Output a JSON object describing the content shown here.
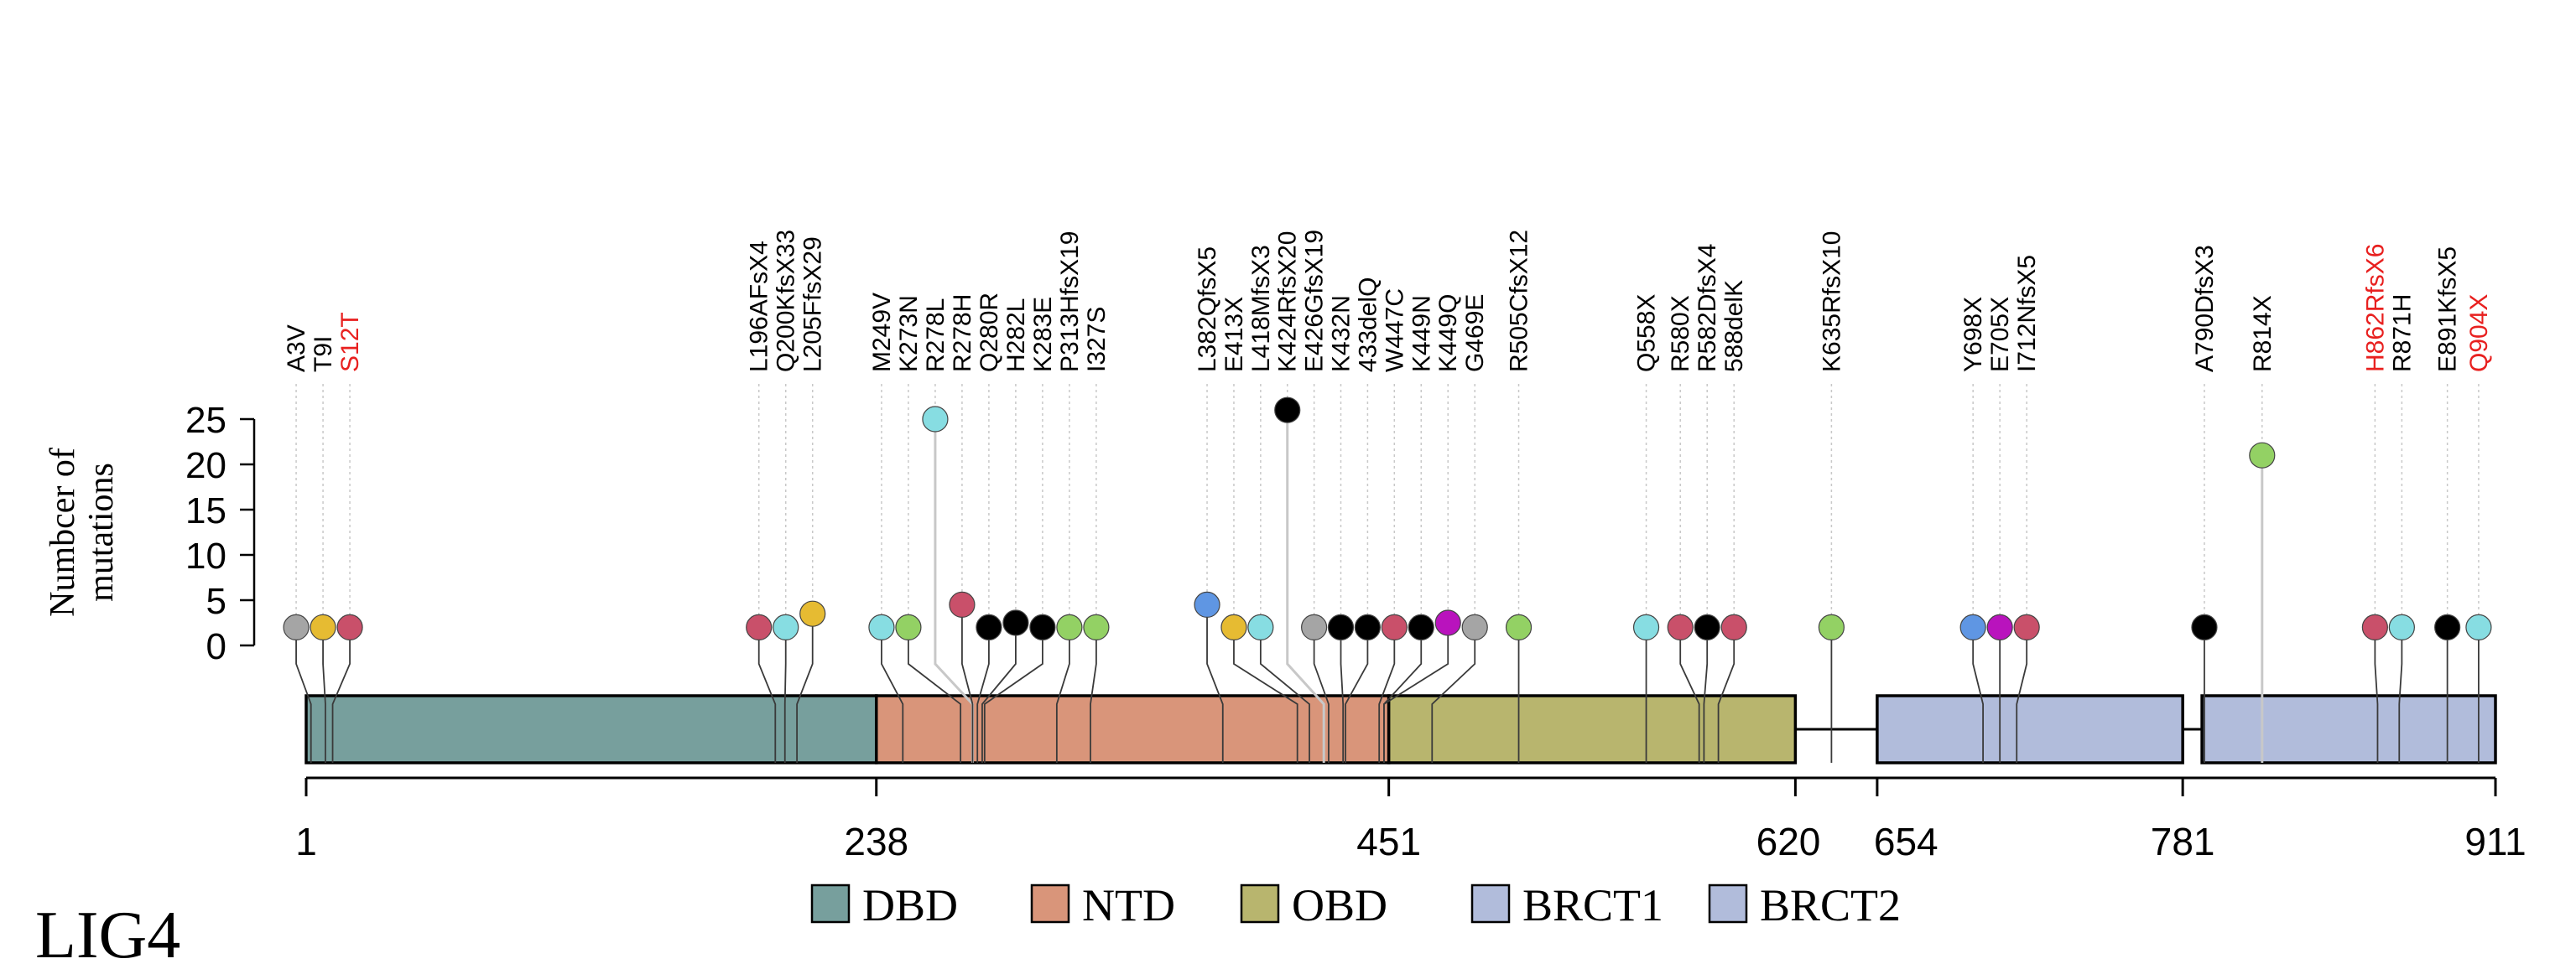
{
  "chart_data": {
    "type": "lollipop",
    "title": "LIG4",
    "ylabel": [
      "Numbcer of",
      "mutations"
    ],
    "xlabel": "",
    "xlim": [
      1,
      911
    ],
    "ylim": [
      0,
      25
    ],
    "yticks": [
      0,
      5,
      10,
      15,
      20,
      25
    ],
    "xticks": [
      1,
      238,
      451,
      620,
      654,
      781,
      911
    ],
    "xtick_labels": [
      "1",
      "238",
      "451",
      "620",
      "654",
      "781",
      "911"
    ],
    "domains": [
      {
        "name": "DBD",
        "start": 1,
        "end": 238,
        "color": "#779f9d"
      },
      {
        "name": "NTD",
        "start": 238,
        "end": 451,
        "color": "#d9957a"
      },
      {
        "name": "OBD",
        "start": 451,
        "end": 620,
        "color": "#b8b56e"
      },
      {
        "name": "BRCT1",
        "start": 654,
        "end": 781,
        "color": "#b1bcdb"
      },
      {
        "name": "BRCT2",
        "start": 789,
        "end": 911,
        "color": "#b1bcdb"
      }
    ],
    "legend": [
      "DBD",
      "NTD",
      "OBD",
      "BRCT1",
      "BRCT2"
    ],
    "mutations": [
      {
        "label": "A3V",
        "pos": 3,
        "count": 2,
        "color": "#a5a5a5"
      },
      {
        "label": "T9I",
        "pos": 9,
        "count": 2,
        "color": "#e6bb32"
      },
      {
        "label": "S12T",
        "pos": 12,
        "count": 2,
        "color": "#c9506a",
        "highlight": true
      },
      {
        "label": "L196AFsX4",
        "pos": 196,
        "count": 2,
        "color": "#c9506a"
      },
      {
        "label": "Q200KfsX33",
        "pos": 200,
        "count": 2,
        "color": "#87dde2"
      },
      {
        "label": "L205FfsX29",
        "pos": 205,
        "count": 3.5,
        "color": "#e6bb32"
      },
      {
        "label": "M249V",
        "pos": 249,
        "count": 2,
        "color": "#87dde2"
      },
      {
        "label": "K273N",
        "pos": 273,
        "count": 2,
        "color": "#93d164"
      },
      {
        "label": "R278L",
        "pos": 278,
        "count": 25,
        "color": "#87dde2"
      },
      {
        "label": "R278H",
        "pos": 278,
        "count": 4.5,
        "color": "#c9506a"
      },
      {
        "label": "Q280R",
        "pos": 280,
        "count": 2,
        "color": "#000000"
      },
      {
        "label": "H282L",
        "pos": 282,
        "count": 2.5,
        "color": "#000000"
      },
      {
        "label": "K283E",
        "pos": 283,
        "count": 2,
        "color": "#000000"
      },
      {
        "label": "P313HfsX19",
        "pos": 313,
        "count": 2,
        "color": "#93d164"
      },
      {
        "label": "I327S",
        "pos": 327,
        "count": 2,
        "color": "#93d164"
      },
      {
        "label": "L382QfsX5",
        "pos": 382,
        "count": 4.5,
        "color": "#5f96e3"
      },
      {
        "label": "E413X",
        "pos": 413,
        "count": 2,
        "color": "#e6bb32"
      },
      {
        "label": "L418MfsX3",
        "pos": 418,
        "count": 2,
        "color": "#87dde2"
      },
      {
        "label": "K424RfsX20",
        "pos": 424,
        "count": 26,
        "color": "#000000"
      },
      {
        "label": "E426GfsX19",
        "pos": 426,
        "count": 2,
        "color": "#a5a5a5"
      },
      {
        "label": "K432N",
        "pos": 432,
        "count": 2,
        "color": "#000000"
      },
      {
        "label": "433delQ",
        "pos": 433,
        "count": 2,
        "color": "#000000"
      },
      {
        "label": "W447C",
        "pos": 447,
        "count": 2,
        "color": "#c9506a"
      },
      {
        "label": "K449N",
        "pos": 449,
        "count": 2,
        "color": "#000000"
      },
      {
        "label": "K449Q",
        "pos": 449,
        "count": 2.5,
        "color": "#b913bd"
      },
      {
        "label": "G469E",
        "pos": 469,
        "count": 2,
        "color": "#a5a5a5"
      },
      {
        "label": "R505CfsX12",
        "pos": 505,
        "count": 2,
        "color": "#93d164"
      },
      {
        "label": "Q558X",
        "pos": 558,
        "count": 2,
        "color": "#87dde2"
      },
      {
        "label": "R580X",
        "pos": 580,
        "count": 2,
        "color": "#c9506a"
      },
      {
        "label": "R582DfsX4",
        "pos": 582,
        "count": 2,
        "color": "#000000"
      },
      {
        "label": "588delK",
        "pos": 588,
        "count": 2,
        "color": "#c9506a"
      },
      {
        "label": "K635RfsX10",
        "pos": 635,
        "count": 2,
        "color": "#93d164"
      },
      {
        "label": "Y698X",
        "pos": 698,
        "count": 2,
        "color": "#5f96e3"
      },
      {
        "label": "E705X",
        "pos": 705,
        "count": 2,
        "color": "#b913bd"
      },
      {
        "label": "I712NfsX5",
        "pos": 712,
        "count": 2,
        "color": "#c9506a"
      },
      {
        "label": "A790DfsX3",
        "pos": 790,
        "count": 2,
        "color": "#000000"
      },
      {
        "label": "R814X",
        "pos": 814,
        "count": 21,
        "color": "#93d164"
      },
      {
        "label": "H862RfsX6",
        "pos": 862,
        "count": 2,
        "color": "#c9506a",
        "highlight": true
      },
      {
        "label": "R871H",
        "pos": 871,
        "count": 2,
        "color": "#87dde2"
      },
      {
        "label": "E891KfsX5",
        "pos": 891,
        "count": 2,
        "color": "#000000"
      },
      {
        "label": "Q904X",
        "pos": 904,
        "count": 2,
        "color": "#87dde2",
        "highlight": true
      }
    ],
    "highlight_color": "#e8201f"
  }
}
